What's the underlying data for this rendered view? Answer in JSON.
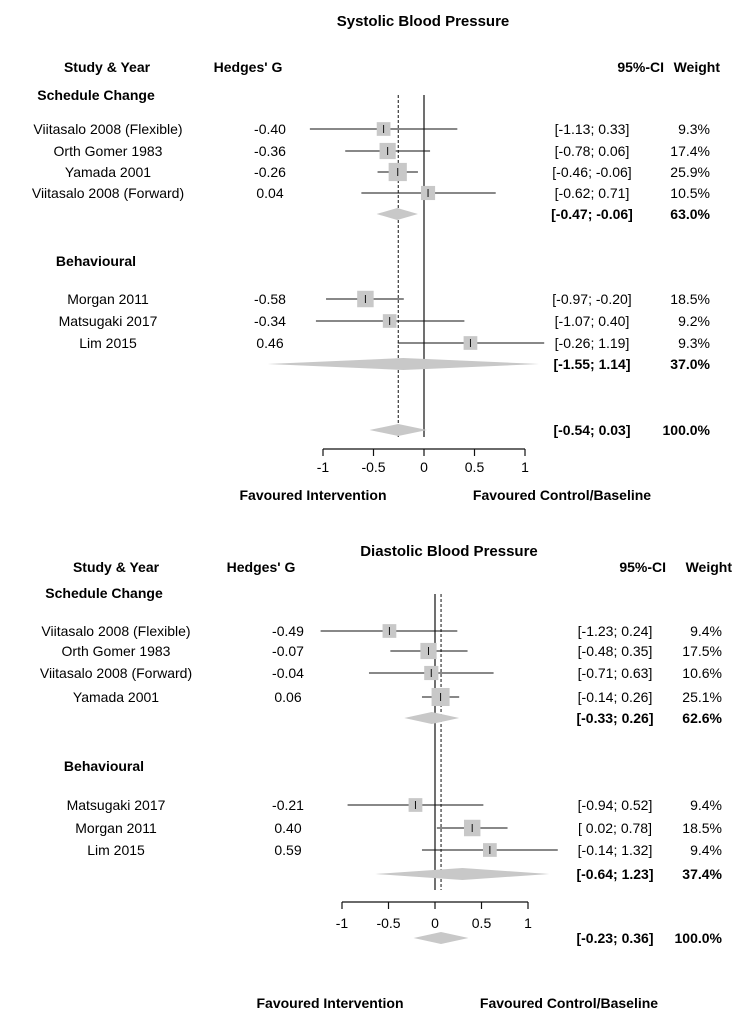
{
  "chart_data": [
    {
      "type": "forest",
      "title": "Systolic Blood Pressure",
      "headers": {
        "study": "Study & Year",
        "effect": "Hedges' G",
        "ci": "95%-CI",
        "weight": "Weight"
      },
      "groups": [
        {
          "name": "Schedule Change",
          "studies": [
            {
              "label": "Viitasalo 2008 (Flexible)",
              "es_text": "-0.40",
              "ci_text": "[-1.13; 0.33]",
              "weight_text": "9.3%",
              "es": -0.4,
              "lo": -1.13,
              "hi": 0.33,
              "weight": 9.3
            },
            {
              "label": "Orth Gomer 1983",
              "es_text": "-0.36",
              "ci_text": "[-0.78; 0.06]",
              "weight_text": "17.4%",
              "es": -0.36,
              "lo": -0.78,
              "hi": 0.06,
              "weight": 17.4
            },
            {
              "label": "Yamada 2001",
              "es_text": "-0.26",
              "ci_text": "[-0.46; -0.06]",
              "weight_text": "25.9%",
              "es": -0.26,
              "lo": -0.46,
              "hi": -0.06,
              "weight": 25.9
            },
            {
              "label": "Viitasalo 2008 (Forward)",
              "es_text": "0.04",
              "ci_text": "[-0.62; 0.71]",
              "weight_text": "10.5%",
              "es": 0.04,
              "lo": -0.62,
              "hi": 0.71,
              "weight": 10.5
            }
          ],
          "subtotal": {
            "ci_text": "[-0.47; -0.06]",
            "weight_text": "63.0%",
            "lo": -0.47,
            "hi": -0.06
          }
        },
        {
          "name": "Behavioural",
          "studies": [
            {
              "label": "Morgan 2011",
              "es_text": "-0.58",
              "ci_text": "[-0.97; -0.20]",
              "weight_text": "18.5%",
              "es": -0.58,
              "lo": -0.97,
              "hi": -0.2,
              "weight": 18.5
            },
            {
              "label": "Matsugaki 2017",
              "es_text": "-0.34",
              "ci_text": "[-1.07; 0.40]",
              "weight_text": "9.2%",
              "es": -0.34,
              "lo": -1.07,
              "hi": 0.4,
              "weight": 9.2
            },
            {
              "label": "Lim 2015",
              "es_text": "0.46",
              "ci_text": "[-0.26; 1.19]",
              "weight_text": "9.3%",
              "es": 0.46,
              "lo": -0.26,
              "hi": 1.19,
              "weight": 9.3
            }
          ],
          "subtotal": {
            "ci_text": "[-1.55; 1.14]",
            "weight_text": "37.0%",
            "lo": -1.55,
            "hi": 1.14
          }
        }
      ],
      "overall": {
        "ci_text": "[-0.54; 0.03]",
        "weight_text": "100.0%",
        "lo": -0.54,
        "hi": 0.03,
        "es": -0.255
      },
      "xlim": [
        -1,
        1
      ],
      "xticks": [
        "-1",
        "-0.5",
        "0",
        "0.5",
        "1"
      ],
      "favour_left": "Favoured Intervention",
      "favour_right": "Favoured Control/Baseline"
    },
    {
      "type": "forest",
      "title": "Diastolic Blood Pressure",
      "headers": {
        "study": "Study & Year",
        "effect": "Hedges' G",
        "ci": "95%-CI",
        "weight": "Weight"
      },
      "groups": [
        {
          "name": "Schedule Change",
          "studies": [
            {
              "label": "Viitasalo 2008 (Flexible)",
              "es_text": "-0.49",
              "ci_text": "[-1.23; 0.24]",
              "weight_text": "9.4%",
              "es": -0.49,
              "lo": -1.23,
              "hi": 0.24,
              "weight": 9.4
            },
            {
              "label": "Orth Gomer 1983",
              "es_text": "-0.07",
              "ci_text": "[-0.48; 0.35]",
              "weight_text": "17.5%",
              "es": -0.07,
              "lo": -0.48,
              "hi": 0.35,
              "weight": 17.5
            },
            {
              "label": "Viitasalo 2008 (Forward)",
              "es_text": "-0.04",
              "ci_text": "[-0.71; 0.63]",
              "weight_text": "10.6%",
              "es": -0.04,
              "lo": -0.71,
              "hi": 0.63,
              "weight": 10.6
            },
            {
              "label": "Yamada 2001",
              "es_text": "0.06",
              "ci_text": "[-0.14; 0.26]",
              "weight_text": "25.1%",
              "es": 0.06,
              "lo": -0.14,
              "hi": 0.26,
              "weight": 25.1
            }
          ],
          "subtotal": {
            "ci_text": "[-0.33; 0.26]",
            "weight_text": "62.6%",
            "lo": -0.33,
            "hi": 0.26
          }
        },
        {
          "name": "Behavioural",
          "studies": [
            {
              "label": "Matsugaki 2017",
              "es_text": "-0.21",
              "ci_text": "[-0.94; 0.52]",
              "weight_text": "9.4%",
              "es": -0.21,
              "lo": -0.94,
              "hi": 0.52,
              "weight": 9.4
            },
            {
              "label": "Morgan 2011",
              "es_text": "0.40",
              "ci_text": "[ 0.02; 0.78]",
              "weight_text": "18.5%",
              "es": 0.4,
              "lo": 0.02,
              "hi": 0.78,
              "weight": 18.5
            },
            {
              "label": "Lim 2015",
              "es_text": "0.59",
              "ci_text": "[-0.14; 1.32]",
              "weight_text": "9.4%",
              "es": 0.59,
              "lo": -0.14,
              "hi": 1.32,
              "weight": 9.4
            }
          ],
          "subtotal": {
            "ci_text": "[-0.64; 1.23]",
            "weight_text": "37.4%",
            "lo": -0.64,
            "hi": 1.23
          }
        }
      ],
      "overall": {
        "ci_text": "[-0.23; 0.36]",
        "weight_text": "100.0%",
        "lo": -0.23,
        "hi": 0.36,
        "es": 0.065
      },
      "xlim": [
        -1,
        1
      ],
      "xticks": [
        "-1",
        "-0.5",
        "0",
        "0.5",
        "1"
      ],
      "favour_left": "Favoured Intervention",
      "favour_right": "Favoured Control/Baseline"
    }
  ],
  "colors": {
    "marker": "#c8c8c8",
    "line": "#111111",
    "diamond": "#c8c8c8"
  }
}
